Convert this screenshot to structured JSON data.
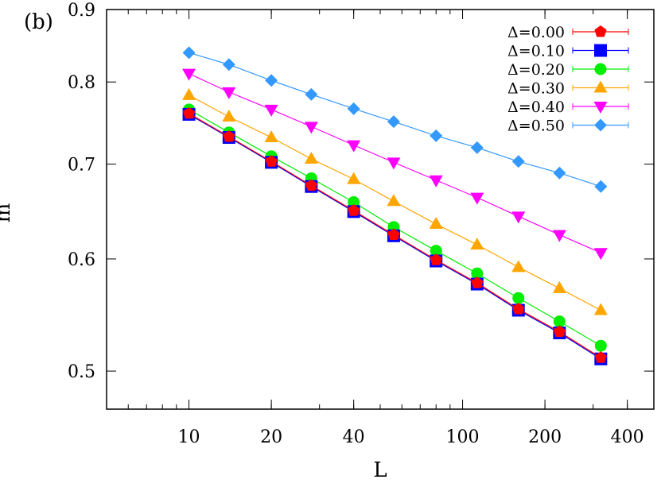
{
  "chart_data": {
    "type": "line",
    "annotation": "(b)",
    "xlabel": "L",
    "ylabel": "m",
    "xscale": "log",
    "yscale": "log",
    "xlim": [
      5,
      500
    ],
    "ylim": [
      0.47,
      0.9
    ],
    "xticks": [
      10,
      20,
      40,
      100,
      200,
      400
    ],
    "xtick_labels": [
      "10",
      "20",
      "40",
      "100",
      "200",
      "400"
    ],
    "yticks": [
      0.5,
      0.6,
      0.7,
      0.8,
      0.9
    ],
    "ytick_labels": [
      "0.5",
      "0.6",
      "0.7",
      "0.8",
      "0.9"
    ],
    "grid": false,
    "legend": "top-right",
    "x": [
      10,
      14,
      20,
      28,
      40,
      56,
      80,
      113,
      160,
      226,
      320
    ],
    "series": [
      {
        "name": "Δ=0.00",
        "color": "#ff0000",
        "marker": "pentagon",
        "values": [
          0.76,
          0.732,
          0.703,
          0.676,
          0.649,
          0.624,
          0.599,
          0.577,
          0.553,
          0.533,
          0.511
        ]
      },
      {
        "name": "Δ=0.10",
        "color": "#0000ff",
        "marker": "square",
        "values": [
          0.759,
          0.731,
          0.702,
          0.675,
          0.648,
          0.623,
          0.598,
          0.576,
          0.552,
          0.532,
          0.51
        ]
      },
      {
        "name": "Δ=0.20",
        "color": "#00ee00",
        "marker": "circle",
        "values": [
          0.765,
          0.737,
          0.709,
          0.684,
          0.658,
          0.632,
          0.608,
          0.586,
          0.563,
          0.542,
          0.521
        ]
      },
      {
        "name": "Δ=0.30",
        "color": "#ffa500",
        "marker": "triangle-up",
        "values": [
          0.783,
          0.756,
          0.731,
          0.706,
          0.683,
          0.659,
          0.635,
          0.614,
          0.592,
          0.572,
          0.552
        ]
      },
      {
        "name": "Δ=0.40",
        "color": "#ff00ff",
        "marker": "triangle-down",
        "values": [
          0.811,
          0.787,
          0.765,
          0.744,
          0.722,
          0.702,
          0.682,
          0.663,
          0.643,
          0.624,
          0.606
        ]
      },
      {
        "name": "Δ=0.50",
        "color": "#3399ff",
        "marker": "diamond",
        "values": [
          0.839,
          0.823,
          0.802,
          0.784,
          0.766,
          0.75,
          0.733,
          0.719,
          0.703,
          0.69,
          0.675
        ]
      }
    ]
  }
}
